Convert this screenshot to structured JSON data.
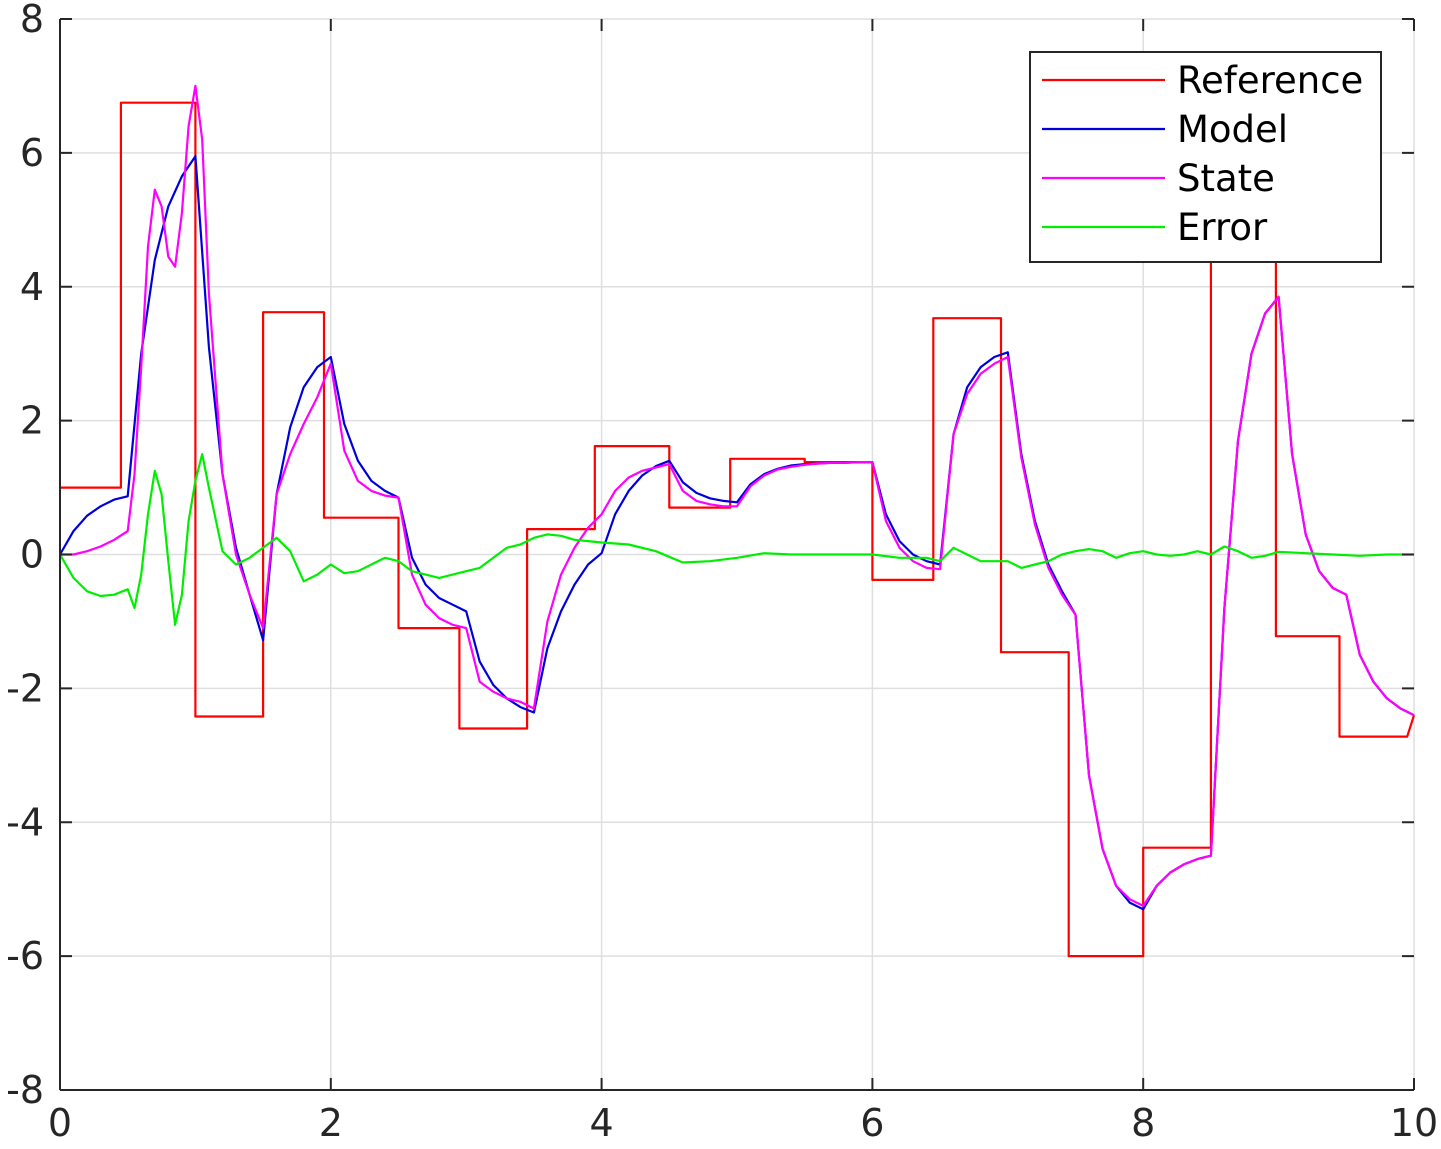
{
  "chart_data": {
    "type": "line",
    "title": "",
    "xlabel": "",
    "ylabel": "",
    "xlim": [
      0,
      10
    ],
    "ylim": [
      -8,
      8
    ],
    "xticks": [
      "0",
      "2",
      "4",
      "6",
      "8",
      "10"
    ],
    "yticks": [
      "-8",
      "-6",
      "-4",
      "-2",
      "0",
      "2",
      "4",
      "6",
      "8"
    ],
    "grid": true,
    "legend_position": "top-right",
    "series": [
      {
        "name": "Reference",
        "color": "#ff0000",
        "x": [
          0,
          0.45,
          0.45,
          0.5,
          0.5,
          1.0,
          1.0,
          1.5,
          1.5,
          1.95,
          1.95,
          2.0,
          2.0,
          2.5,
          2.5,
          2.95,
          2.95,
          3.0,
          3.0,
          3.45,
          3.45,
          3.5,
          3.5,
          3.95,
          3.95,
          4.0,
          4.0,
          4.5,
          4.5,
          4.95,
          4.95,
          5.0,
          5.0,
          5.5,
          5.5,
          6.0,
          6.0,
          6.45,
          6.45,
          6.5,
          6.5,
          6.95,
          6.95,
          7.0,
          7.0,
          7.45,
          7.45,
          7.5,
          7.5,
          8.0,
          8.0,
          8.5,
          8.5,
          8.98,
          8.98,
          9.0,
          9.0,
          9.45,
          9.45,
          9.5,
          9.5,
          9.95,
          10.0
        ],
        "y": [
          1.0,
          1.0,
          6.75,
          6.75,
          6.75,
          6.75,
          -2.42,
          -2.42,
          3.62,
          3.62,
          0.55,
          0.55,
          0.55,
          0.55,
          -1.1,
          -1.1,
          -2.6,
          -2.6,
          -2.6,
          -2.6,
          0.38,
          0.38,
          0.38,
          0.38,
          1.62,
          1.62,
          1.62,
          1.62,
          0.7,
          0.7,
          1.43,
          1.43,
          1.43,
          1.43,
          1.38,
          1.38,
          -0.38,
          -0.38,
          3.53,
          3.53,
          3.53,
          3.53,
          -1.46,
          -1.46,
          -1.46,
          -1.46,
          -6.0,
          -6.0,
          -6.0,
          -6.0,
          -4.38,
          -4.38,
          4.55,
          4.55,
          -1.22,
          -1.22,
          -1.22,
          -1.22,
          -2.72,
          -2.72,
          -2.72,
          -2.72,
          -2.4
        ]
      },
      {
        "name": "Model",
        "color": "#0000dd",
        "x": [
          0,
          0.1,
          0.2,
          0.3,
          0.4,
          0.5,
          0.6,
          0.7,
          0.8,
          0.9,
          1.0,
          1.1,
          1.2,
          1.3,
          1.4,
          1.5,
          1.6,
          1.7,
          1.8,
          1.9,
          2.0,
          2.1,
          2.2,
          2.3,
          2.4,
          2.5,
          2.6,
          2.7,
          2.8,
          2.9,
          3.0,
          3.1,
          3.2,
          3.3,
          3.4,
          3.5,
          3.6,
          3.7,
          3.8,
          3.9,
          4.0,
          4.1,
          4.2,
          4.3,
          4.4,
          4.5,
          4.6,
          4.7,
          4.8,
          4.9,
          5.0,
          5.1,
          5.2,
          5.3,
          5.4,
          5.5,
          5.6,
          5.7,
          5.8,
          5.9,
          6.0,
          6.1,
          6.2,
          6.3,
          6.4,
          6.5,
          6.6,
          6.7,
          6.8,
          6.9,
          7.0,
          7.1,
          7.2,
          7.3,
          7.4,
          7.5,
          7.6,
          7.7,
          7.8,
          7.9,
          8.0,
          8.1,
          8.2,
          8.3,
          8.4,
          8.5,
          8.6,
          8.7,
          8.8,
          8.9,
          9.0,
          9.1,
          9.2,
          9.3,
          9.4,
          9.5,
          9.6,
          9.7,
          9.8,
          9.9,
          10.0
        ],
        "y": [
          0,
          0.35,
          0.58,
          0.72,
          0.82,
          0.87,
          3.0,
          4.4,
          5.2,
          5.65,
          5.95,
          3.1,
          1.2,
          0.1,
          -0.6,
          -1.28,
          0.9,
          1.9,
          2.5,
          2.8,
          2.95,
          1.95,
          1.4,
          1.1,
          0.95,
          0.85,
          -0.05,
          -0.45,
          -0.65,
          -0.75,
          -0.85,
          -1.6,
          -1.95,
          -2.15,
          -2.28,
          -2.36,
          -1.4,
          -0.85,
          -0.45,
          -0.15,
          0.02,
          0.6,
          0.95,
          1.18,
          1.32,
          1.4,
          1.08,
          0.92,
          0.84,
          0.8,
          0.78,
          1.05,
          1.2,
          1.28,
          1.33,
          1.35,
          1.36,
          1.37,
          1.37,
          1.38,
          1.38,
          0.6,
          0.2,
          0.0,
          -0.1,
          -0.15,
          1.8,
          2.5,
          2.8,
          2.95,
          3.02,
          1.5,
          0.5,
          -0.15,
          -0.55,
          -0.9,
          -3.3,
          -4.4,
          -4.95,
          -5.2,
          -5.3,
          -4.95,
          -4.75,
          -4.63,
          -4.55,
          -4.5,
          -0.8,
          1.7,
          3.0,
          3.6,
          3.85,
          1.5,
          0.3,
          -0.25,
          -0.5,
          -0.6,
          -1.5,
          -1.9,
          -2.15,
          -2.3,
          -2.4
        ]
      },
      {
        "name": "State",
        "color": "#ff00ff",
        "x": [
          0,
          0.1,
          0.2,
          0.3,
          0.4,
          0.5,
          0.55,
          0.6,
          0.65,
          0.7,
          0.75,
          0.8,
          0.85,
          0.9,
          0.95,
          1.0,
          1.05,
          1.1,
          1.2,
          1.3,
          1.4,
          1.5,
          1.6,
          1.7,
          1.8,
          1.9,
          2.0,
          2.1,
          2.2,
          2.3,
          2.4,
          2.5,
          2.6,
          2.7,
          2.8,
          2.9,
          3.0,
          3.1,
          3.2,
          3.3,
          3.4,
          3.5,
          3.6,
          3.7,
          3.8,
          3.9,
          4.0,
          4.1,
          4.2,
          4.3,
          4.4,
          4.5,
          4.6,
          4.7,
          4.8,
          4.9,
          5.0,
          5.1,
          5.2,
          5.3,
          5.4,
          5.5,
          5.6,
          5.7,
          5.8,
          5.9,
          6.0,
          6.1,
          6.2,
          6.3,
          6.4,
          6.5,
          6.6,
          6.7,
          6.8,
          6.9,
          7.0,
          7.1,
          7.2,
          7.3,
          7.4,
          7.5,
          7.6,
          7.7,
          7.8,
          7.9,
          8.0,
          8.1,
          8.2,
          8.3,
          8.4,
          8.5,
          8.6,
          8.7,
          8.8,
          8.9,
          9.0,
          9.1,
          9.2,
          9.3,
          9.4,
          9.5,
          9.6,
          9.7,
          9.8,
          9.9,
          10.0
        ],
        "y": [
          0,
          0.0,
          0.05,
          0.12,
          0.22,
          0.35,
          1.2,
          2.8,
          4.6,
          5.45,
          5.2,
          4.45,
          4.3,
          5.1,
          6.4,
          7.0,
          6.2,
          3.9,
          1.2,
          0.0,
          -0.6,
          -1.1,
          0.9,
          1.5,
          1.95,
          2.35,
          2.85,
          1.55,
          1.1,
          0.95,
          0.88,
          0.85,
          -0.3,
          -0.75,
          -0.95,
          -1.05,
          -1.1,
          -1.9,
          -2.05,
          -2.15,
          -2.2,
          -2.3,
          -1.0,
          -0.3,
          0.1,
          0.4,
          0.6,
          0.95,
          1.15,
          1.25,
          1.3,
          1.35,
          0.95,
          0.8,
          0.75,
          0.72,
          0.72,
          1.02,
          1.18,
          1.27,
          1.31,
          1.34,
          1.36,
          1.37,
          1.37,
          1.38,
          1.38,
          0.5,
          0.1,
          -0.1,
          -0.2,
          -0.22,
          1.8,
          2.4,
          2.7,
          2.85,
          2.95,
          1.45,
          0.45,
          -0.2,
          -0.6,
          -0.9,
          -3.3,
          -4.4,
          -4.95,
          -5.15,
          -5.25,
          -4.95,
          -4.75,
          -4.63,
          -4.55,
          -4.5,
          -0.8,
          1.7,
          3.0,
          3.6,
          3.85,
          1.5,
          0.3,
          -0.25,
          -0.5,
          -0.6,
          -1.5,
          -1.9,
          -2.15,
          -2.3,
          -2.4
        ]
      },
      {
        "name": "Error",
        "color": "#00ee00",
        "x": [
          0,
          0.1,
          0.2,
          0.3,
          0.4,
          0.5,
          0.55,
          0.6,
          0.65,
          0.7,
          0.75,
          0.8,
          0.85,
          0.9,
          0.95,
          1.0,
          1.05,
          1.1,
          1.2,
          1.3,
          1.4,
          1.5,
          1.6,
          1.7,
          1.8,
          1.9,
          2.0,
          2.1,
          2.2,
          2.3,
          2.4,
          2.5,
          2.6,
          2.7,
          2.8,
          2.9,
          3.0,
          3.1,
          3.2,
          3.3,
          3.4,
          3.5,
          3.6,
          3.7,
          3.8,
          3.9,
          4.0,
          4.2,
          4.4,
          4.6,
          4.8,
          5.0,
          5.2,
          5.4,
          5.6,
          5.8,
          6.0,
          6.2,
          6.4,
          6.5,
          6.6,
          6.7,
          6.8,
          6.9,
          7.0,
          7.1,
          7.2,
          7.3,
          7.4,
          7.5,
          7.6,
          7.7,
          7.8,
          7.9,
          8.0,
          8.1,
          8.2,
          8.3,
          8.4,
          8.5,
          8.6,
          8.7,
          8.8,
          8.9,
          9.0,
          9.2,
          9.4,
          9.6,
          9.8,
          10.0
        ],
        "y": [
          0,
          -0.35,
          -0.55,
          -0.62,
          -0.6,
          -0.52,
          -0.8,
          -0.3,
          0.6,
          1.25,
          0.9,
          -0.1,
          -1.05,
          -0.6,
          0.5,
          1.1,
          1.5,
          1.0,
          0.05,
          -0.15,
          -0.05,
          0.1,
          0.25,
          0.05,
          -0.4,
          -0.3,
          -0.15,
          -0.28,
          -0.25,
          -0.15,
          -0.05,
          -0.1,
          -0.25,
          -0.3,
          -0.35,
          -0.3,
          -0.25,
          -0.2,
          -0.05,
          0.1,
          0.15,
          0.25,
          0.3,
          0.28,
          0.22,
          0.2,
          0.18,
          0.15,
          0.05,
          -0.12,
          -0.1,
          -0.05,
          0.02,
          0.0,
          0.0,
          0.0,
          0.0,
          -0.05,
          -0.05,
          -0.1,
          0.1,
          0.0,
          -0.1,
          -0.1,
          -0.1,
          -0.2,
          -0.15,
          -0.1,
          0.0,
          0.05,
          0.08,
          0.05,
          -0.05,
          0.02,
          0.05,
          0.0,
          -0.02,
          0.0,
          0.05,
          0.0,
          0.12,
          0.05,
          -0.05,
          -0.02,
          0.04,
          0.02,
          0.0,
          -0.02,
          0.0,
          0.0
        ]
      }
    ]
  }
}
